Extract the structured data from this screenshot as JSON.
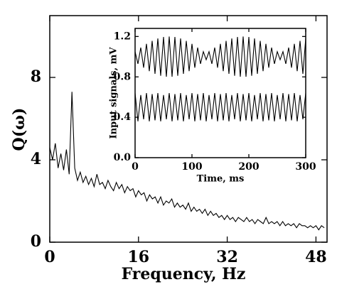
{
  "chart_data": [
    {
      "type": "line",
      "ylabel": "Q(ω)",
      "xlabel": "Frequency, Hz",
      "xlim": [
        0,
        50
      ],
      "ylim": [
        0,
        11
      ],
      "xticks": [
        0,
        16,
        32,
        48
      ],
      "yticks": [
        0,
        4,
        8
      ],
      "x": [
        0,
        0.5,
        1,
        1.5,
        2,
        2.5,
        3,
        3.5,
        4,
        4.5,
        5,
        5.5,
        6,
        6.5,
        7,
        7.5,
        8,
        8.5,
        9,
        9.5,
        10,
        10.5,
        11,
        11.5,
        12,
        12.5,
        13,
        13.5,
        14,
        14.5,
        15,
        15.5,
        16,
        16.5,
        17,
        17.5,
        18,
        18.5,
        19,
        19.5,
        20,
        20.5,
        21,
        21.5,
        22,
        22.5,
        23,
        23.5,
        24,
        24.5,
        25,
        25.5,
        26,
        26.5,
        27,
        27.5,
        28,
        28.5,
        29,
        29.5,
        30,
        30.5,
        31,
        31.5,
        32,
        32.5,
        33,
        33.5,
        34,
        34.5,
        35,
        35.5,
        36,
        36.5,
        37,
        37.5,
        38,
        38.5,
        39,
        39.5,
        40,
        40.5,
        41,
        41.5,
        42,
        42.5,
        43,
        43.5,
        44,
        44.5,
        45,
        45.5,
        46,
        46.5,
        47,
        47.5,
        48,
        48.5,
        49,
        49.5
      ],
      "series": [
        {
          "color": "#000000",
          "values": [
            4.6,
            4.0,
            4.8,
            3.6,
            4.3,
            3.5,
            4.5,
            3.3,
            7.3,
            3.6,
            3.0,
            3.4,
            2.9,
            3.2,
            2.8,
            3.1,
            2.7,
            3.3,
            2.8,
            2.9,
            2.6,
            3.0,
            2.7,
            2.5,
            2.9,
            2.6,
            2.8,
            2.4,
            2.7,
            2.5,
            2.6,
            2.2,
            2.5,
            2.3,
            2.4,
            2.0,
            2.3,
            2.1,
            2.2,
            1.9,
            2.2,
            1.8,
            2.0,
            1.9,
            2.1,
            1.7,
            1.9,
            1.7,
            1.8,
            1.6,
            1.9,
            1.5,
            1.7,
            1.5,
            1.6,
            1.4,
            1.6,
            1.3,
            1.5,
            1.3,
            1.4,
            1.2,
            1.3,
            1.1,
            1.3,
            1.1,
            1.2,
            1.0,
            1.2,
            1.1,
            1.0,
            1.2,
            1.0,
            1.1,
            0.9,
            1.1,
            1.0,
            0.9,
            1.2,
            0.9,
            1.0,
            0.9,
            1.0,
            0.8,
            1.0,
            0.8,
            0.9,
            0.8,
            0.9,
            0.7,
            0.9,
            0.8,
            0.8,
            0.7,
            0.8,
            0.7,
            0.8,
            0.6,
            0.8,
            0.7
          ]
        }
      ]
    },
    {
      "type": "line",
      "ylabel": "Input signals, mV",
      "xlabel": "Time, ms",
      "xlim": [
        0,
        300
      ],
      "ylim": [
        0,
        1.28
      ],
      "xticks": [
        0,
        100,
        200,
        300
      ],
      "yticks": [
        {
          "value": 0,
          "label": "0.0"
        },
        0.4,
        0.8,
        1.2
      ],
      "x": [
        0,
        5,
        10,
        15,
        20,
        25,
        30,
        35,
        40,
        45,
        50,
        55,
        60,
        65,
        70,
        75,
        80,
        85,
        90,
        95,
        100,
        105,
        110,
        115,
        120,
        125,
        130,
        135,
        140,
        145,
        150,
        155,
        160,
        165,
        170,
        175,
        180,
        185,
        190,
        195,
        200,
        205,
        210,
        215,
        220,
        225,
        230,
        235,
        240,
        245,
        250,
        255,
        260,
        265,
        270,
        275,
        280,
        285,
        290,
        295,
        300
      ],
      "series": [
        {
          "color": "#000000",
          "values": [
            1.05,
            0.929,
            1.09,
            0.891,
            1.127,
            0.857,
            1.157,
            0.83,
            1.18,
            0.811,
            1.195,
            0.801,
            1.2,
            0.801,
            1.195,
            0.811,
            1.18,
            0.83,
            1.157,
            0.857,
            1.127,
            0.891,
            1.09,
            0.929,
            1.05,
            0.97,
            1.05,
            0.929,
            1.09,
            0.891,
            1.127,
            0.857,
            1.157,
            0.83,
            1.18,
            0.811,
            1.195,
            0.801,
            1.2,
            0.801,
            1.195,
            0.811,
            1.18,
            0.83,
            1.157,
            0.857,
            1.127,
            0.891,
            1.09,
            0.929,
            1.05,
            0.97,
            1.05,
            0.929,
            1.09,
            0.891,
            1.127,
            0.857,
            1.157,
            0.83,
            1.18
          ]
        },
        {
          "color": "#000000",
          "values": [
            0.64,
            0.36,
            0.62,
            0.38,
            0.64,
            0.36,
            0.63,
            0.37,
            0.64,
            0.36,
            0.62,
            0.38,
            0.64,
            0.36,
            0.63,
            0.37,
            0.64,
            0.36,
            0.62,
            0.38,
            0.64,
            0.36,
            0.63,
            0.37,
            0.64,
            0.36,
            0.62,
            0.38,
            0.64,
            0.36,
            0.63,
            0.37,
            0.64,
            0.36,
            0.62,
            0.38,
            0.64,
            0.36,
            0.63,
            0.37,
            0.64,
            0.36,
            0.62,
            0.38,
            0.64,
            0.36,
            0.63,
            0.37,
            0.64,
            0.36,
            0.62,
            0.38,
            0.64,
            0.36,
            0.63,
            0.37,
            0.64,
            0.36,
            0.62,
            0.38,
            0.64
          ]
        }
      ]
    }
  ]
}
